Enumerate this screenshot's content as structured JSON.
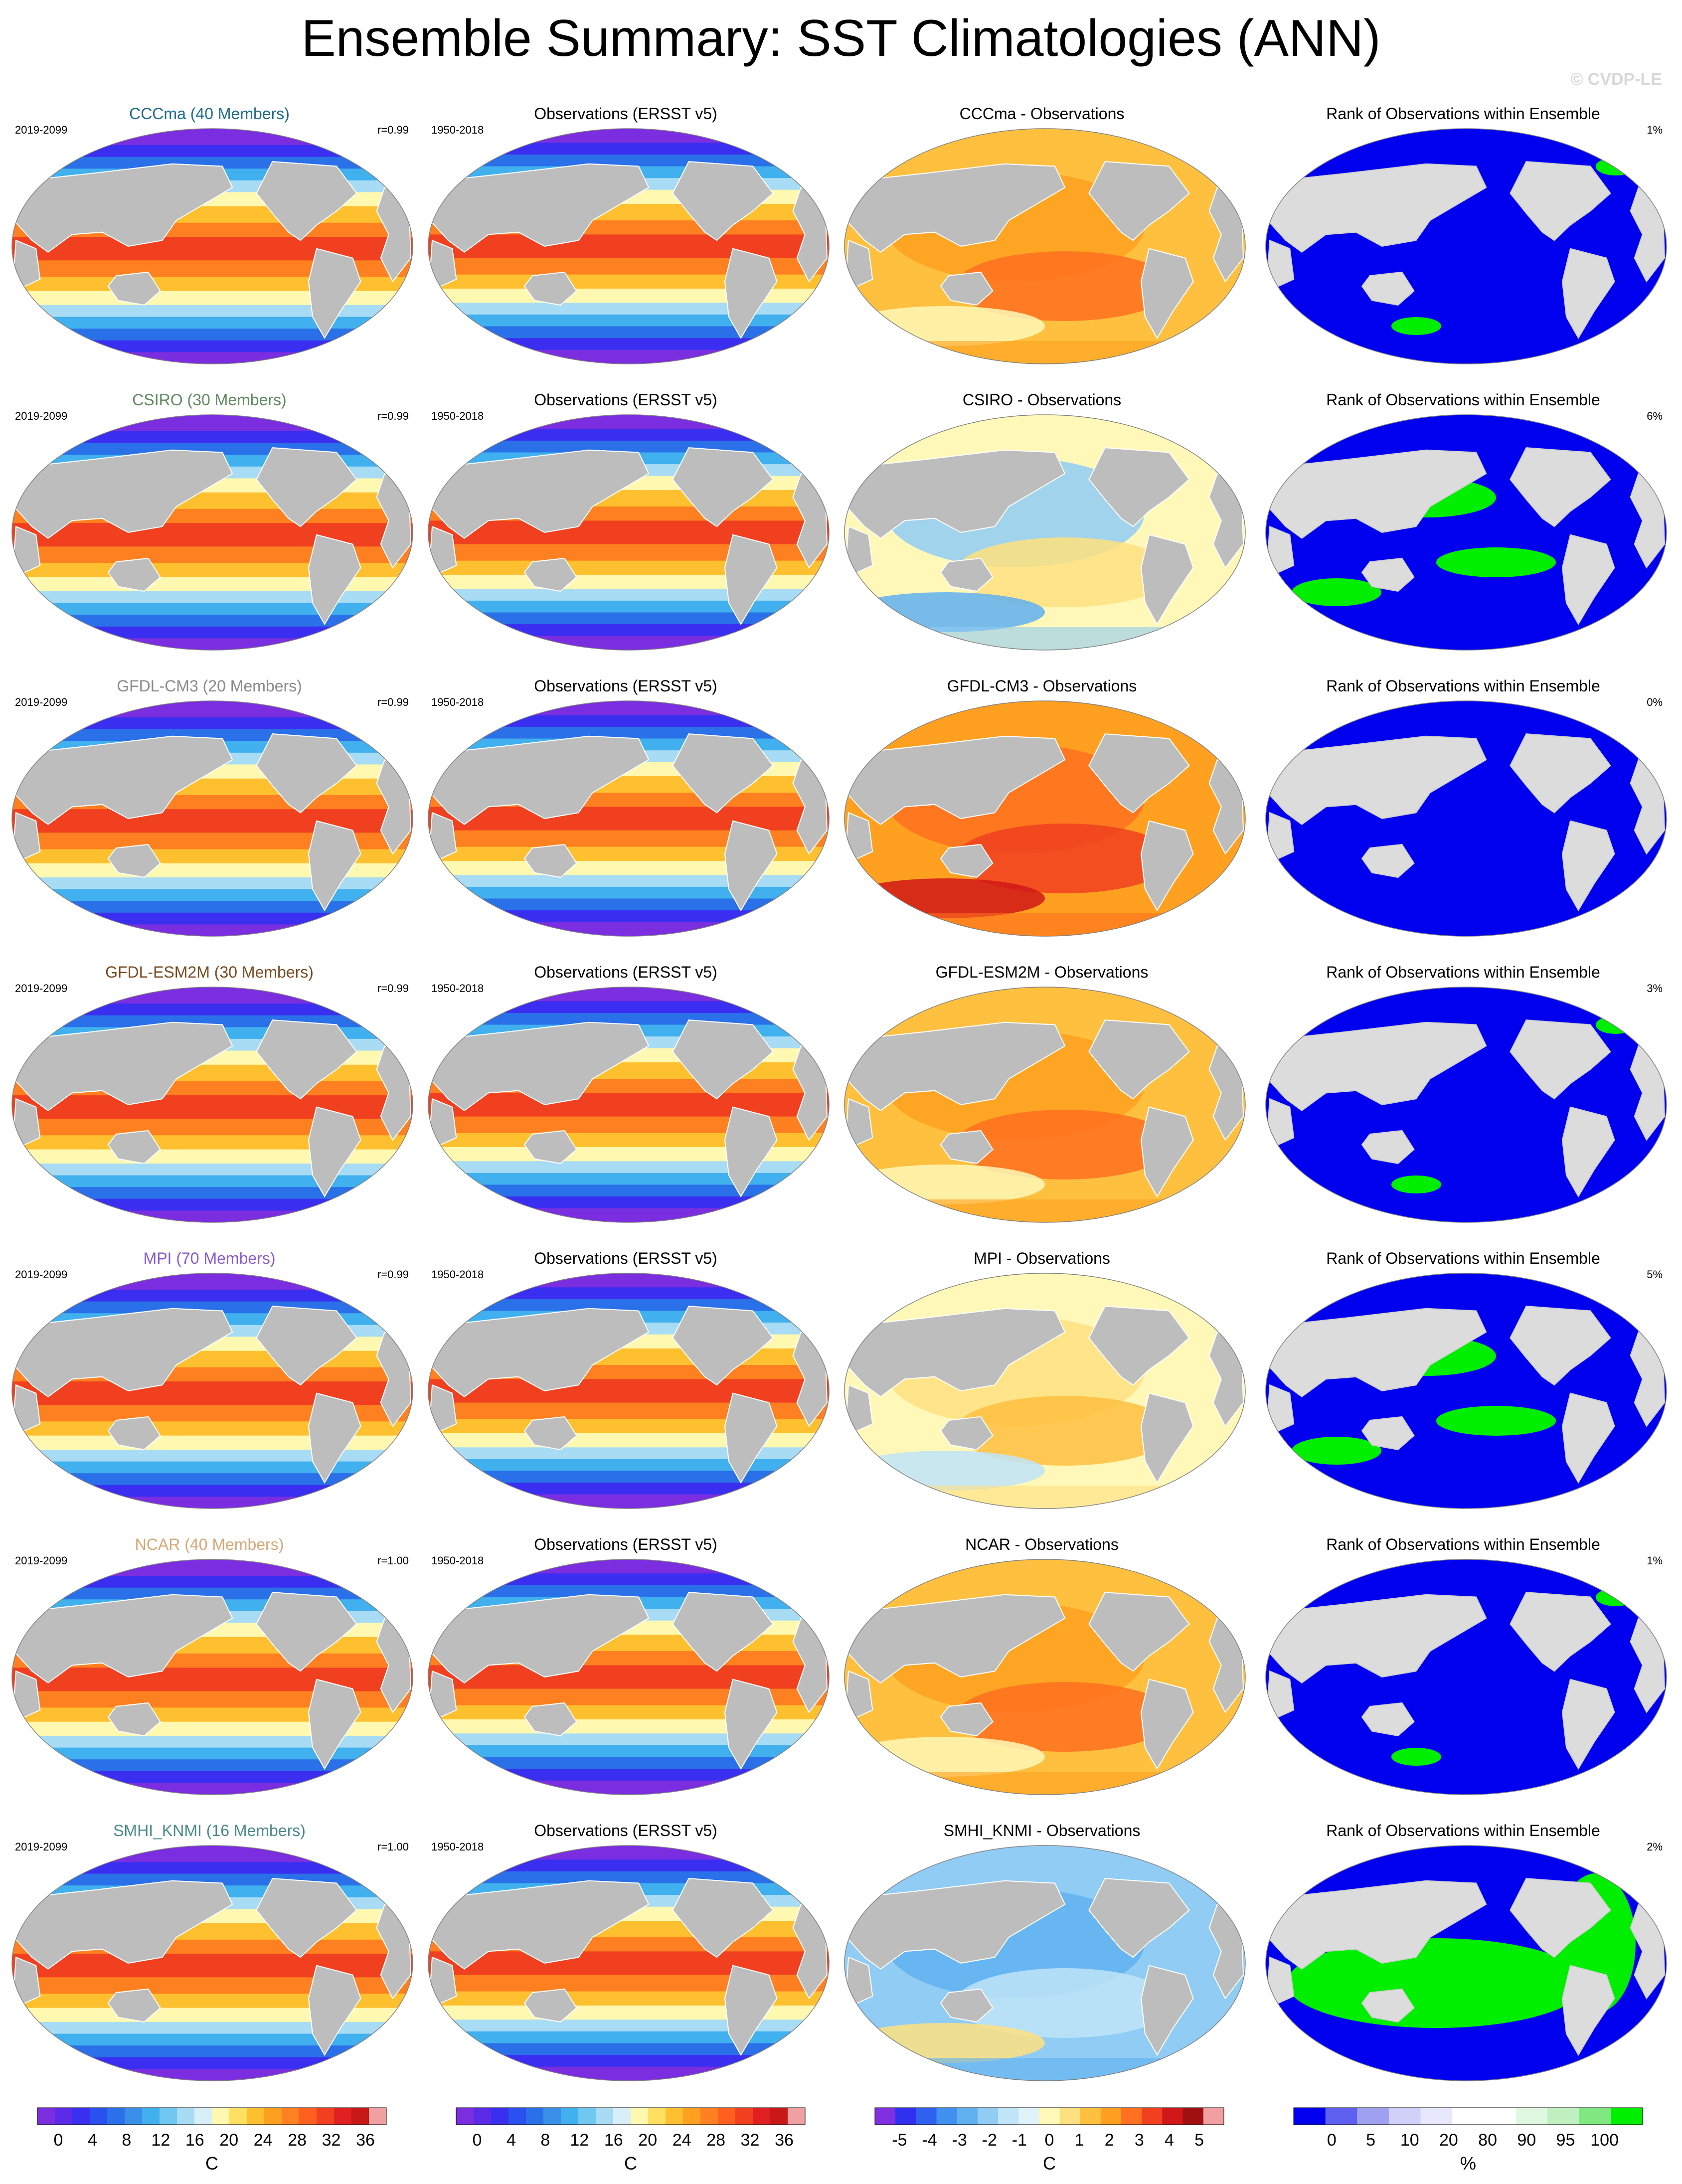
{
  "title": "Ensemble Summary: SST Climatologies (ANN)",
  "copyright": "© CVDP-LE",
  "rows": [
    {
      "model_title": "CCCma (40 Members)",
      "title_color": "#1f6b8f",
      "period": "2019-2099",
      "r": "r=0.99",
      "obs_title": "Observations (ERSST v5)",
      "obs_period": "1950-2018",
      "diff_title": "CCCma - Observations",
      "diff_style": "warm",
      "rank_title": "Rank of Observations within Ensemble",
      "rank_pct": "1%",
      "rank_style": "low"
    },
    {
      "model_title": "CSIRO (30 Members)",
      "title_color": "#5e8a5e",
      "period": "2019-2099",
      "r": "r=0.99",
      "obs_title": "Observations (ERSST v5)",
      "obs_period": "1950-2018",
      "diff_title": "CSIRO - Observations",
      "diff_style": "mixed",
      "rank_title": "Rank of Observations within Ensemble",
      "rank_pct": "6%",
      "rank_style": "patchy"
    },
    {
      "model_title": "GFDL-CM3 (20 Members)",
      "title_color": "#8a8a8a",
      "period": "2019-2099",
      "r": "r=0.99",
      "obs_title": "Observations (ERSST v5)",
      "obs_period": "1950-2018",
      "diff_title": "GFDL-CM3 - Observations",
      "diff_style": "hot",
      "rank_title": "Rank of Observations within Ensemble",
      "rank_pct": "0%",
      "rank_style": "none"
    },
    {
      "model_title": "GFDL-ESM2M (30 Members)",
      "title_color": "#7a4a1f",
      "period": "2019-2099",
      "r": "r=0.99",
      "obs_title": "Observations (ERSST v5)",
      "obs_period": "1950-2018",
      "diff_title": "GFDL-ESM2M - Observations",
      "diff_style": "warm",
      "rank_title": "Rank of Observations within Ensemble",
      "rank_pct": "3%",
      "rank_style": "low"
    },
    {
      "model_title": "MPI (70 Members)",
      "title_color": "#8a5ad0",
      "period": "2019-2099",
      "r": "r=0.99",
      "obs_title": "Observations (ERSST v5)",
      "obs_period": "1950-2018",
      "diff_title": "MPI - Observations",
      "diff_style": "mild",
      "rank_title": "Rank of Observations within Ensemble",
      "rank_pct": "5%",
      "rank_style": "patchy"
    },
    {
      "model_title": "NCAR (40 Members)",
      "title_color": "#d8a878",
      "period": "2019-2099",
      "r": "r=1.00",
      "obs_title": "Observations (ERSST v5)",
      "obs_period": "1950-2018",
      "diff_title": "NCAR - Observations",
      "diff_style": "warm",
      "rank_title": "Rank of Observations within Ensemble",
      "rank_pct": "1%",
      "rank_style": "low"
    },
    {
      "model_title": "SMHI_KNMI (16 Members)",
      "title_color": "#4a8a8a",
      "period": "2019-2099",
      "r": "r=1.00",
      "obs_title": "Observations (ERSST v5)",
      "obs_period": "1950-2018",
      "diff_title": "SMHI_KNMI - Observations",
      "diff_style": "cool",
      "rank_title": "Rank of Observations within Ensemble",
      "rank_pct": "2%",
      "rank_style": "high"
    }
  ],
  "colorbars": [
    {
      "name": "sst-model",
      "ticks": [
        "0",
        "4",
        "8",
        "12",
        "16",
        "20",
        "24",
        "28",
        "32",
        "36"
      ],
      "unit": "C",
      "colors": [
        "#7b2ee0",
        "#5a2ae8",
        "#3a2ff0",
        "#2a50f0",
        "#2a70e8",
        "#3a90e8",
        "#40b0ee",
        "#70c8f0",
        "#a8dcf4",
        "#d8eef8",
        "#fff8b0",
        "#ffe060",
        "#ffc030",
        "#ffa020",
        "#ff8020",
        "#ff6020",
        "#f04020",
        "#e02020",
        "#c81818",
        "#f0a0a0"
      ]
    },
    {
      "name": "sst-obs",
      "ticks": [
        "0",
        "4",
        "8",
        "12",
        "16",
        "20",
        "24",
        "28",
        "32",
        "36"
      ],
      "unit": "C",
      "colors": [
        "#7b2ee0",
        "#5a2ae8",
        "#3a2ff0",
        "#2a50f0",
        "#2a70e8",
        "#3a90e8",
        "#40b0ee",
        "#70c8f0",
        "#a8dcf4",
        "#d8eef8",
        "#fff8b0",
        "#ffe060",
        "#ffc030",
        "#ffa020",
        "#ff8020",
        "#ff6020",
        "#f04020",
        "#e02020",
        "#c81818",
        "#f0a0a0"
      ]
    },
    {
      "name": "diff",
      "ticks": [
        "-5",
        "-4",
        "-3",
        "-2",
        "-1",
        "0",
        "1",
        "2",
        "3",
        "4",
        "5"
      ],
      "unit": "C",
      "colors": [
        "#8030e0",
        "#3030f0",
        "#3060f0",
        "#4090f0",
        "#60b0f0",
        "#90ccf4",
        "#c0e4f8",
        "#e0f2fa",
        "#fff8b8",
        "#ffe080",
        "#ffc040",
        "#ffa020",
        "#ff7020",
        "#f04020",
        "#d01818",
        "#a01010",
        "#f0a0a0"
      ]
    },
    {
      "name": "rank",
      "ticks": [
        "0",
        "5",
        "10",
        "20",
        "80",
        "90",
        "95",
        "100"
      ],
      "unit": "%",
      "colors": [
        "#0000ee",
        "#6060f0",
        "#a0a0f0",
        "#d0d0f8",
        "#e8e8fc",
        "#ffffff",
        "#ffffff",
        "#e0f8e0",
        "#c0f0c0",
        "#80e880",
        "#00ee00"
      ]
    }
  ]
}
